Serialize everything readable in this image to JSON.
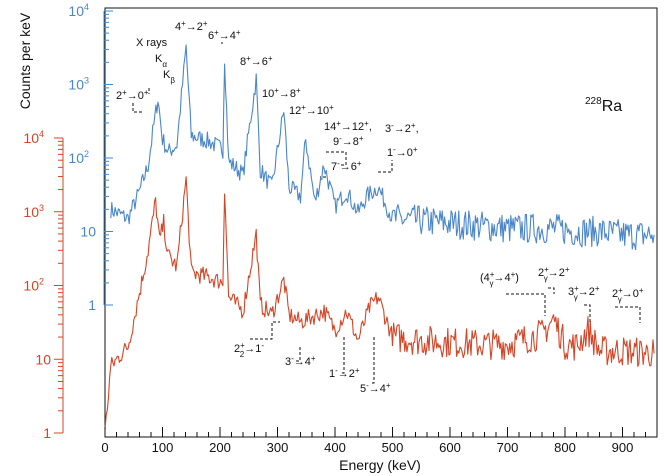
{
  "chart_data": {
    "type": "line",
    "title": "",
    "isotope_label": "228Ra",
    "isotope_mass": "228",
    "isotope_symbol": "Ra",
    "xlabel": "Energy (keV)",
    "ylabel": "Counts per keV",
    "xlim": [
      0,
      960
    ],
    "x_ticks": [
      0,
      100,
      200,
      300,
      400,
      500,
      600,
      700,
      800,
      900
    ],
    "axes": {
      "blue": {
        "color": "#4a86c8",
        "scale": "log",
        "decades": [
          1,
          10,
          100,
          1000,
          10000
        ],
        "tick_labels": [
          {
            "base": "1",
            "exp": ""
          },
          {
            "base": "10",
            "exp": ""
          },
          {
            "base": "10",
            "exp": "2"
          },
          {
            "base": "10",
            "exp": "3"
          },
          {
            "base": "10",
            "exp": "4"
          }
        ]
      },
      "red": {
        "color": "#d44426",
        "scale": "log",
        "decades": [
          1,
          10,
          100,
          1000,
          10000
        ],
        "tick_labels": [
          {
            "base": "1",
            "exp": ""
          },
          {
            "base": "10",
            "exp": ""
          },
          {
            "base": "10",
            "exp": "2"
          },
          {
            "base": "10",
            "exp": "3"
          },
          {
            "base": "10",
            "exp": "4"
          }
        ]
      }
    },
    "series": [
      {
        "name": "blue spectrum",
        "axis": "blue",
        "color": "#4a86c8",
        "x": [
          10,
          40,
          60,
          75,
          85,
          92,
          100,
          110,
          125,
          141,
          150,
          180,
          205,
          208,
          215,
          240,
          263,
          270,
          290,
          311,
          320,
          340,
          349,
          365,
          381,
          400,
          420,
          440,
          455,
          475,
          500,
          550,
          600,
          650,
          700,
          760,
          780,
          820,
          860,
          900,
          955
        ],
        "values": [
          20,
          15,
          35,
          80,
          280,
          650,
          180,
          120,
          150,
          3200,
          200,
          170,
          130,
          2400,
          90,
          60,
          1200,
          70,
          40,
          450,
          40,
          30,
          180,
          25,
          80,
          22,
          35,
          18,
          30,
          40,
          15,
          14,
          13,
          12,
          11,
          11,
          11,
          10,
          10,
          9,
          9
        ]
      },
      {
        "name": "red spectrum",
        "axis": "red",
        "color": "#d44426",
        "x": [
          0,
          10,
          40,
          60,
          75,
          88,
          95,
          102,
          110,
          125,
          141,
          150,
          180,
          205,
          208,
          215,
          240,
          263,
          270,
          290,
          311,
          320,
          340,
          381,
          400,
          420,
          440,
          460,
          475,
          500,
          550,
          600,
          650,
          700,
          760,
          780,
          800,
          820,
          840,
          860,
          900,
          955
        ],
        "values": [
          1,
          8,
          15,
          80,
          300,
          1400,
          400,
          700,
          250,
          180,
          2800,
          150,
          130,
          110,
          2200,
          70,
          45,
          500,
          55,
          40,
          120,
          40,
          32,
          45,
          25,
          45,
          18,
          50,
          70,
          20,
          18,
          17,
          16,
          16,
          22,
          35,
          16,
          15,
          25,
          13,
          13,
          12
        ]
      }
    ],
    "annotations": {
      "blue": [
        {
          "html": "X rays"
        },
        {
          "html": "K<tspan baseline-shift=\"sub\" font-size=\"8\">α</tspan>"
        },
        {
          "html": "K<tspan baseline-shift=\"sub\" font-size=\"8\">β</tspan>"
        },
        {
          "html": "2<tspan baseline-shift=\"super\" font-size=\"8\">+</tspan>→0<tspan baseline-shift=\"super\" font-size=\"8\">+</tspan>"
        },
        {
          "html": "4<tspan baseline-shift=\"super\" font-size=\"8\">+</tspan>→2<tspan baseline-shift=\"super\" font-size=\"8\">+</tspan>"
        },
        {
          "html": "6<tspan baseline-shift=\"super\" font-size=\"8\">+</tspan>→4<tspan baseline-shift=\"super\" font-size=\"8\">+</tspan>"
        },
        {
          "html": "8<tspan baseline-shift=\"super\" font-size=\"8\">+</tspan>→6<tspan baseline-shift=\"super\" font-size=\"8\">+</tspan>"
        },
        {
          "html": "10<tspan baseline-shift=\"super\" font-size=\"8\">+</tspan>→8<tspan baseline-shift=\"super\" font-size=\"8\">+</tspan>"
        },
        {
          "html": "12<tspan baseline-shift=\"super\" font-size=\"8\">+</tspan>→10<tspan baseline-shift=\"super\" font-size=\"8\">+</tspan>"
        },
        {
          "html": "14<tspan baseline-shift=\"super\" font-size=\"8\">+</tspan>→12<tspan baseline-shift=\"super\" font-size=\"8\">+</tspan>,"
        },
        {
          "html": "9<tspan baseline-shift=\"super\" font-size=\"8\">-</tspan>→8<tspan baseline-shift=\"super\" font-size=\"8\">+</tspan>"
        },
        {
          "html": "7<tspan baseline-shift=\"super\" font-size=\"8\">-</tspan>→6<tspan baseline-shift=\"super\" font-size=\"8\">+</tspan>"
        },
        {
          "html": "3<tspan baseline-shift=\"super\" font-size=\"8\">-</tspan>→2<tspan baseline-shift=\"super\" font-size=\"8\">+</tspan>,"
        },
        {
          "html": "1<tspan baseline-shift=\"super\" font-size=\"8\">-</tspan>→0<tspan baseline-shift=\"super\" font-size=\"8\">+</tspan>"
        }
      ],
      "red": [
        {
          "html": "2<tspan baseline-shift=\"super\" font-size=\"8\">+</tspan><tspan dx=\"-5\" baseline-shift=\"sub\" font-size=\"8\">2</tspan>→1<tspan baseline-shift=\"super\" font-size=\"8\">-</tspan>"
        },
        {
          "html": "3<tspan baseline-shift=\"super\" font-size=\"8\">-</tspan>→4<tspan baseline-shift=\"super\" font-size=\"8\">+</tspan>"
        },
        {
          "html": "1<tspan baseline-shift=\"super\" font-size=\"8\">-</tspan>→2<tspan baseline-shift=\"super\" font-size=\"8\">+</tspan>"
        },
        {
          "html": "5<tspan baseline-shift=\"super\" font-size=\"8\">-</tspan>→4<tspan baseline-shift=\"super\" font-size=\"8\">+</tspan>"
        },
        {
          "html": "(4<tspan baseline-shift=\"super\" font-size=\"8\">+</tspan><tspan dx=\"-5\" baseline-shift=\"sub\" font-size=\"8\">γ</tspan>→4<tspan baseline-shift=\"super\" font-size=\"8\">+</tspan>)"
        },
        {
          "html": "2<tspan baseline-shift=\"super\" font-size=\"8\">+</tspan><tspan dx=\"-5\" baseline-shift=\"sub\" font-size=\"8\">γ</tspan>→2<tspan baseline-shift=\"super\" font-size=\"8\">+</tspan>"
        },
        {
          "html": "3<tspan baseline-shift=\"super\" font-size=\"8\">+</tspan><tspan dx=\"-5\" baseline-shift=\"sub\" font-size=\"8\">γ</tspan>→2<tspan baseline-shift=\"super\" font-size=\"8\">+</tspan>"
        },
        {
          "html": "2<tspan baseline-shift=\"super\" font-size=\"8\">+</tspan><tspan dx=\"-5\" baseline-shift=\"sub\" font-size=\"8\">γ</tspan>→0<tspan baseline-shift=\"super\" font-size=\"8\">+</tspan>"
        }
      ]
    }
  }
}
